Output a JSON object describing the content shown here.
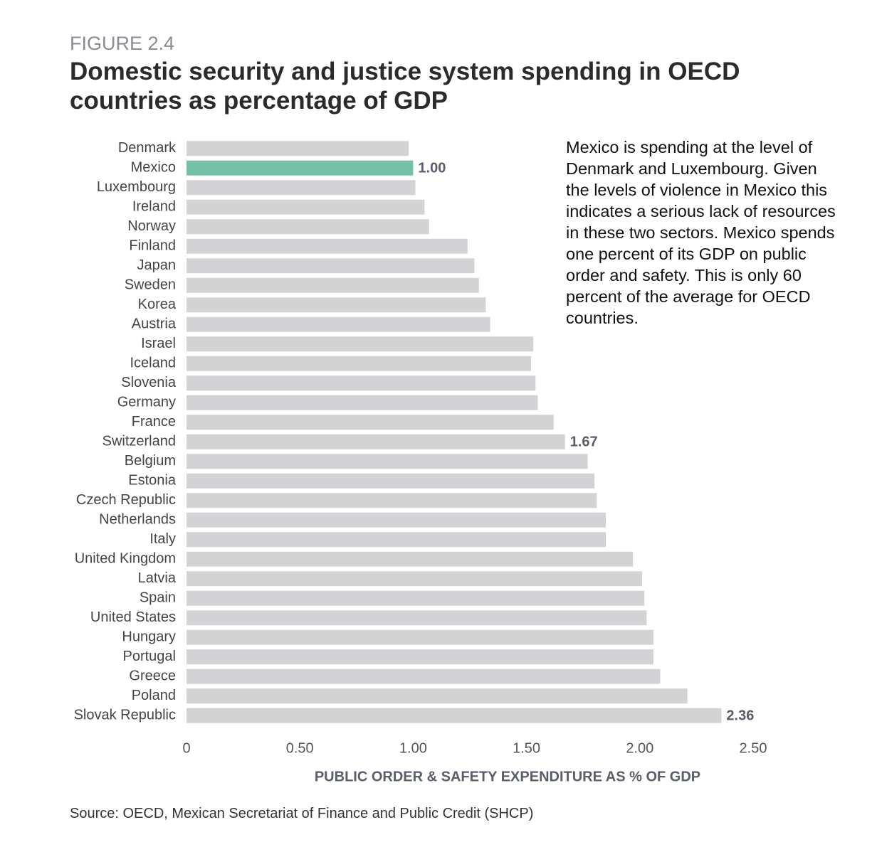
{
  "chart_data": {
    "type": "barh",
    "subtitle": "FIGURE 2.4",
    "title": "Domestic security and justice system spending in OECD countries as percentage of GDP",
    "annotation": "Mexico is spending at the level of Denmark and Luxembourg. Given the levels of violence in Mexico this indicates a serious lack of resources in these two sectors. Mexico spends one percent of its GDP on public order and safety. This is only 60 percent of the average for OECD countries.",
    "x_label": "PUBLIC ORDER & SAFETY EXPENDITURE AS % OF GDP",
    "source": "Source: OECD, Mexican Secretariat of Finance and Public Credit (SHCP)",
    "categories": [
      "Denmark",
      "Mexico",
      "Luxembourg",
      "Ireland",
      "Norway",
      "Finland",
      "Japan",
      "Sweden",
      "Korea",
      "Austria",
      "Israel",
      "Iceland",
      "Slovenia",
      "Germany",
      "France",
      "Switzerland",
      "Belgium",
      "Estonia",
      "Czech Republic",
      "Netherlands",
      "Italy",
      "United Kingdom",
      "Latvia",
      "Spain",
      "United States",
      "Hungary",
      "Portugal",
      "Greece",
      "Poland",
      "Slovak Republic"
    ],
    "values": [
      0.98,
      1.0,
      1.01,
      1.05,
      1.07,
      1.24,
      1.27,
      1.29,
      1.32,
      1.34,
      1.53,
      1.52,
      1.54,
      1.55,
      1.62,
      1.67,
      1.77,
      1.8,
      1.81,
      1.85,
      1.85,
      1.97,
      2.01,
      2.02,
      2.03,
      2.06,
      2.06,
      2.09,
      2.21,
      2.36
    ],
    "value_labels": [
      null,
      "1.00",
      null,
      null,
      null,
      null,
      null,
      null,
      null,
      null,
      null,
      null,
      null,
      null,
      null,
      "1.67",
      null,
      null,
      null,
      null,
      null,
      null,
      null,
      null,
      null,
      null,
      null,
      null,
      null,
      "2.36"
    ],
    "color": "#d3d3d5",
    "highlight": {
      "category": "Mexico",
      "color": "#74bfa8"
    },
    "xlim": [
      0,
      2.5
    ],
    "xticks": [
      0,
      {
        "value": 0.5,
        "label": "0.50"
      },
      {
        "value": 1,
        "label": "1.00"
      },
      {
        "value": 1.5,
        "label": "1.50"
      },
      {
        "value": 2,
        "label": "2.00"
      },
      {
        "value": 2.5,
        "label": "2.50"
      }
    ],
    "grid": false
  }
}
